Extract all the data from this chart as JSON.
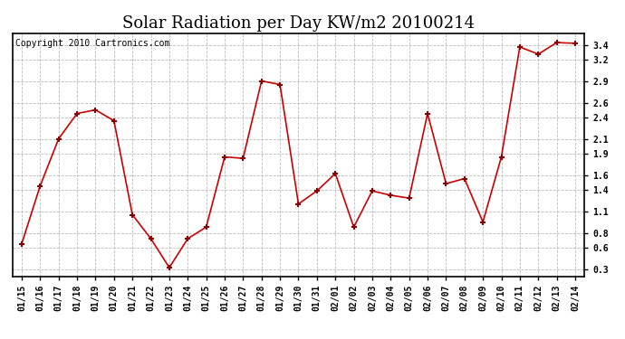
{
  "title": "Solar Radiation per Day KW/m2 20100214",
  "copyright_text": "Copyright 2010 Cartronics.com",
  "dates": [
    "01/15",
    "01/16",
    "01/17",
    "01/18",
    "01/19",
    "01/20",
    "01/21",
    "01/22",
    "01/23",
    "01/24",
    "01/25",
    "01/26",
    "01/27",
    "01/28",
    "01/29",
    "01/30",
    "01/31",
    "02/01",
    "02/02",
    "02/03",
    "02/04",
    "02/05",
    "02/06",
    "02/07",
    "02/08",
    "02/09",
    "02/10",
    "02/11",
    "02/12",
    "02/13",
    "02/14"
  ],
  "values": [
    0.65,
    1.45,
    2.1,
    2.45,
    2.5,
    2.35,
    1.05,
    0.72,
    0.32,
    0.72,
    0.88,
    1.85,
    1.83,
    2.9,
    2.85,
    1.2,
    1.38,
    1.62,
    0.88,
    1.38,
    1.32,
    1.28,
    2.45,
    1.48,
    1.55,
    0.95,
    1.85,
    3.37,
    3.27,
    3.43,
    3.42
  ],
  "yticks": [
    0.3,
    0.6,
    0.8,
    1.1,
    1.4,
    1.6,
    1.9,
    2.1,
    2.4,
    2.6,
    2.9,
    3.2,
    3.4
  ],
  "ylim": [
    0.2,
    3.55
  ],
  "line_color": "#cc0000",
  "marker_color": "#880000",
  "background_color": "#ffffff",
  "grid_color": "#bbbbbb",
  "title_fontsize": 13,
  "tick_fontsize": 7,
  "copyright_fontsize": 7
}
